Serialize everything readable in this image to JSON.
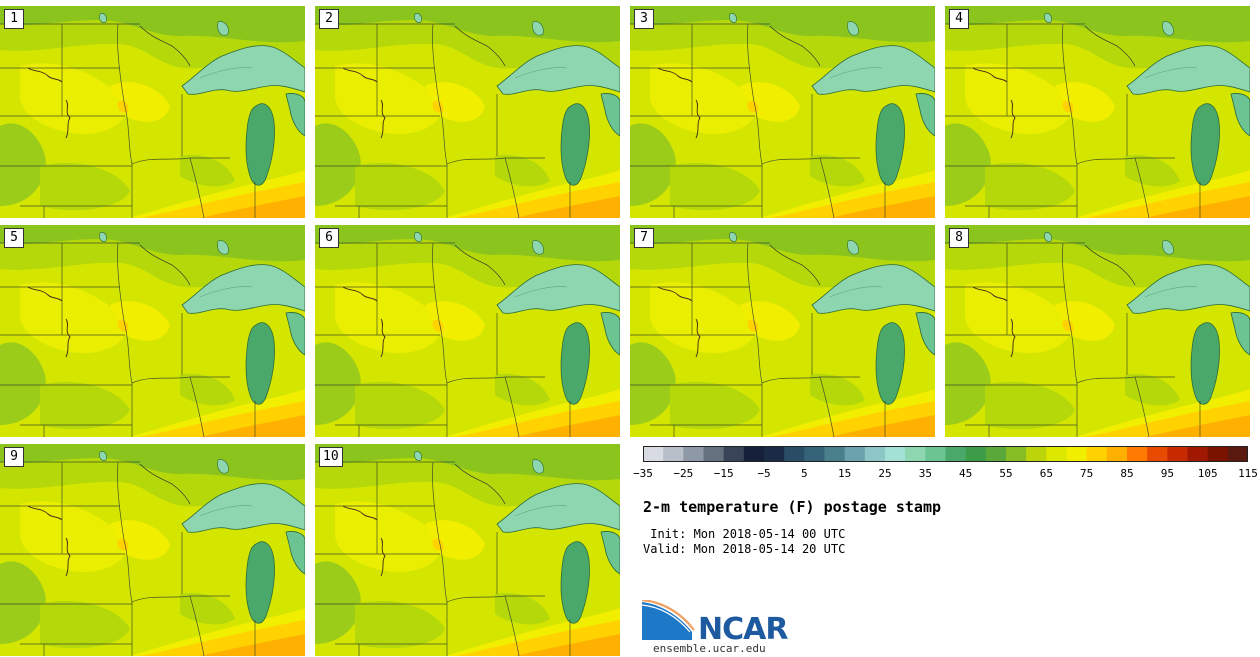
{
  "panels": [
    "1",
    "2",
    "3",
    "4",
    "5",
    "6",
    "7",
    "8",
    "9",
    "10"
  ],
  "colorbar": {
    "colors": [
      "#d8dce2",
      "#b8bfc8",
      "#8e98a6",
      "#66717f",
      "#3a4458",
      "#16203a",
      "#1b2b45",
      "#2a4d66",
      "#356378",
      "#4a7f8c",
      "#6aa3ae",
      "#8cc6c6",
      "#a3e0d6",
      "#8ed6b0",
      "#6cc493",
      "#4aa86a",
      "#3c9c48",
      "#5aa83a",
      "#86bc24",
      "#bcd40a",
      "#dce800",
      "#f2ee00",
      "#ffd200",
      "#ffb000",
      "#ff7a00",
      "#e84a00",
      "#c82a00",
      "#a01800",
      "#7a1400",
      "#5a1a10"
    ],
    "ticks": [
      "−35",
      "−25",
      "−15",
      "−5",
      "5",
      "15",
      "25",
      "35",
      "45",
      "55",
      "65",
      "75",
      "85",
      "95",
      "105",
      "115"
    ]
  },
  "title": "2-m temperature (F) postage stamp",
  "init": " Init: Mon 2018-05-14 00 UTC",
  "valid": "Valid: Mon 2018-05-14 20 UTC",
  "logo_text": "NCAR",
  "url": "ensemble.ucar.edu"
}
